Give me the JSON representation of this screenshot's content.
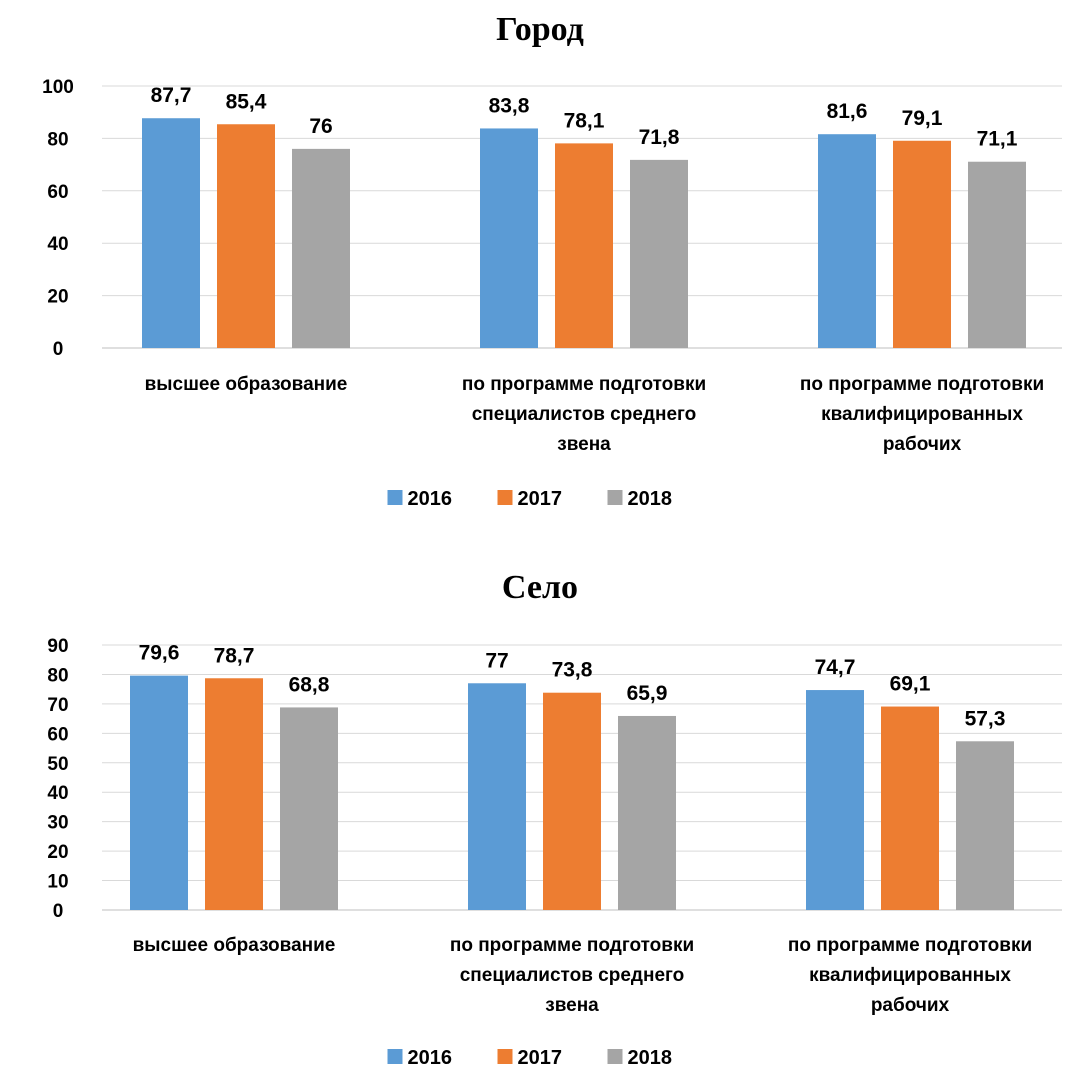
{
  "colors": {
    "2016": "#5b9bd5",
    "2017": "#ed7d31",
    "2018": "#a5a5a5"
  },
  "chart_data": [
    {
      "type": "bar",
      "title": "Город",
      "categories": [
        [
          "высшее образование"
        ],
        [
          "по программе подготовки",
          "специалистов среднего",
          "звена"
        ],
        [
          "по программе подготовки",
          "квалифицированных",
          "рабочих"
        ]
      ],
      "series": [
        {
          "name": "2016",
          "values": [
            87.7,
            83.8,
            81.6
          ],
          "labels": [
            "87,7",
            "83,8",
            "81,6"
          ]
        },
        {
          "name": "2017",
          "values": [
            85.4,
            78.1,
            79.1
          ],
          "labels": [
            "85,4",
            "78,1",
            "79,1"
          ]
        },
        {
          "name": "2018",
          "values": [
            76,
            71.8,
            71.1
          ],
          "labels": [
            "76",
            "71,8",
            "71,1"
          ]
        }
      ],
      "ylim": [
        0,
        100
      ],
      "yticks": [
        0,
        20,
        40,
        60,
        80,
        100
      ],
      "grid": true,
      "legend": "bottom"
    },
    {
      "type": "bar",
      "title": "Село",
      "categories": [
        [
          "высшее образование"
        ],
        [
          "по программе подготовки",
          "специалистов среднего",
          "звена"
        ],
        [
          "по программе подготовки",
          "квалифицированных",
          "рабочих"
        ]
      ],
      "series": [
        {
          "name": "2016",
          "values": [
            79.6,
            77,
            74.7
          ],
          "labels": [
            "79,6",
            "77",
            "74,7"
          ]
        },
        {
          "name": "2017",
          "values": [
            78.7,
            73.8,
            69.1
          ],
          "labels": [
            "78,7",
            "73,8",
            "69,1"
          ]
        },
        {
          "name": "2018",
          "values": [
            68.8,
            65.9,
            57.3
          ],
          "labels": [
            "68,8",
            "65,9",
            "57,3"
          ]
        }
      ],
      "ylim": [
        0,
        90
      ],
      "yticks": [
        0,
        10,
        20,
        30,
        40,
        50,
        60,
        70,
        80,
        90
      ],
      "grid": true,
      "legend": "bottom"
    }
  ]
}
